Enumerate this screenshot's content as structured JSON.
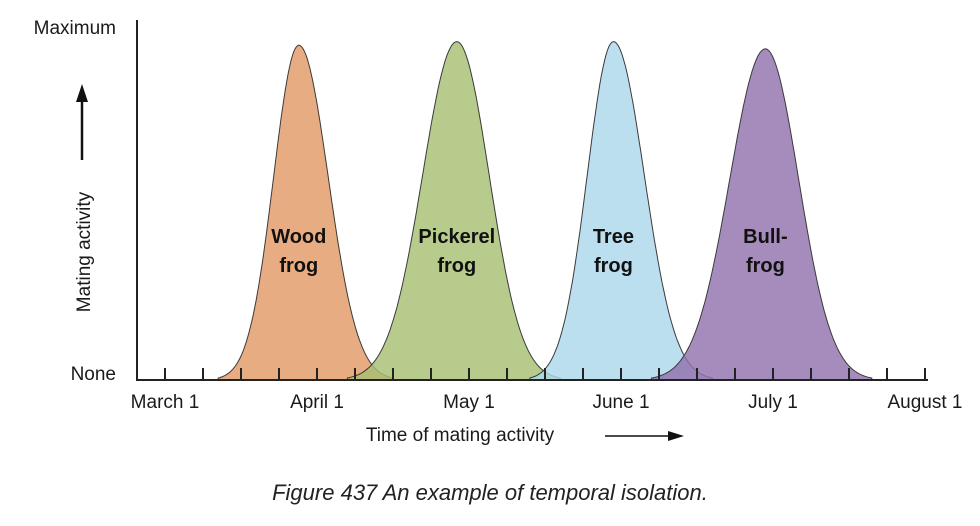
{
  "chart_data": {
    "type": "area",
    "xlabel": "Time of mating activity",
    "ylabel": "Mating activity",
    "y_ticks": {
      "max": "Maximum",
      "min": "None"
    },
    "x_ticks": [
      "March 1",
      "April 1",
      "May 1",
      "June 1",
      "July 1",
      "August 1"
    ],
    "xlim": [
      0,
      5
    ],
    "ylim": [
      0,
      1
    ],
    "series": [
      {
        "name": "Wood frog",
        "label_lines": [
          "Wood",
          "frog"
        ],
        "peak_x": 0.88,
        "peak_y": 0.93,
        "start_x": 0.35,
        "end_x": 1.5,
        "color": "#e39a66"
      },
      {
        "name": "Pickerel frog",
        "label_lines": [
          "Pickerel",
          "frog"
        ],
        "peak_x": 1.92,
        "peak_y": 0.94,
        "start_x": 1.2,
        "end_x": 2.6,
        "color": "#a6bf73"
      },
      {
        "name": "Tree frog",
        "label_lines": [
          "Tree",
          "frog"
        ],
        "peak_x": 2.95,
        "peak_y": 0.94,
        "start_x": 2.4,
        "end_x": 3.6,
        "color": "#add8ec"
      },
      {
        "name": "Bullfrog",
        "label_lines": [
          "Bull-",
          "frog"
        ],
        "peak_x": 3.95,
        "peak_y": 0.92,
        "start_x": 3.2,
        "end_x": 4.65,
        "color": "#9272ae"
      }
    ]
  },
  "caption": "Figure 437 An example of temporal isolation."
}
